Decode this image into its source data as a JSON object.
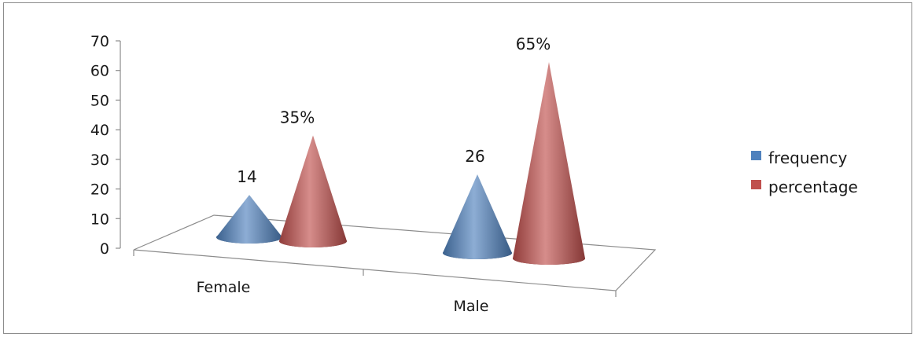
{
  "chart_data": {
    "type": "bar",
    "style": "3d-cone",
    "categories": [
      "Female",
      "Male"
    ],
    "series": [
      {
        "name": "frequency",
        "values": [
          14,
          26
        ],
        "labels": [
          "14",
          "26"
        ],
        "color": "#4f81bd"
      },
      {
        "name": "percentage",
        "values": [
          35,
          65
        ],
        "labels": [
          "35%",
          "65%"
        ],
        "color": "#c0504d"
      }
    ],
    "ylim": [
      0,
      70
    ],
    "yticks": [
      "0",
      "10",
      "20",
      "30",
      "40",
      "50",
      "60",
      "70"
    ],
    "legend_position": "right",
    "grid": false
  }
}
